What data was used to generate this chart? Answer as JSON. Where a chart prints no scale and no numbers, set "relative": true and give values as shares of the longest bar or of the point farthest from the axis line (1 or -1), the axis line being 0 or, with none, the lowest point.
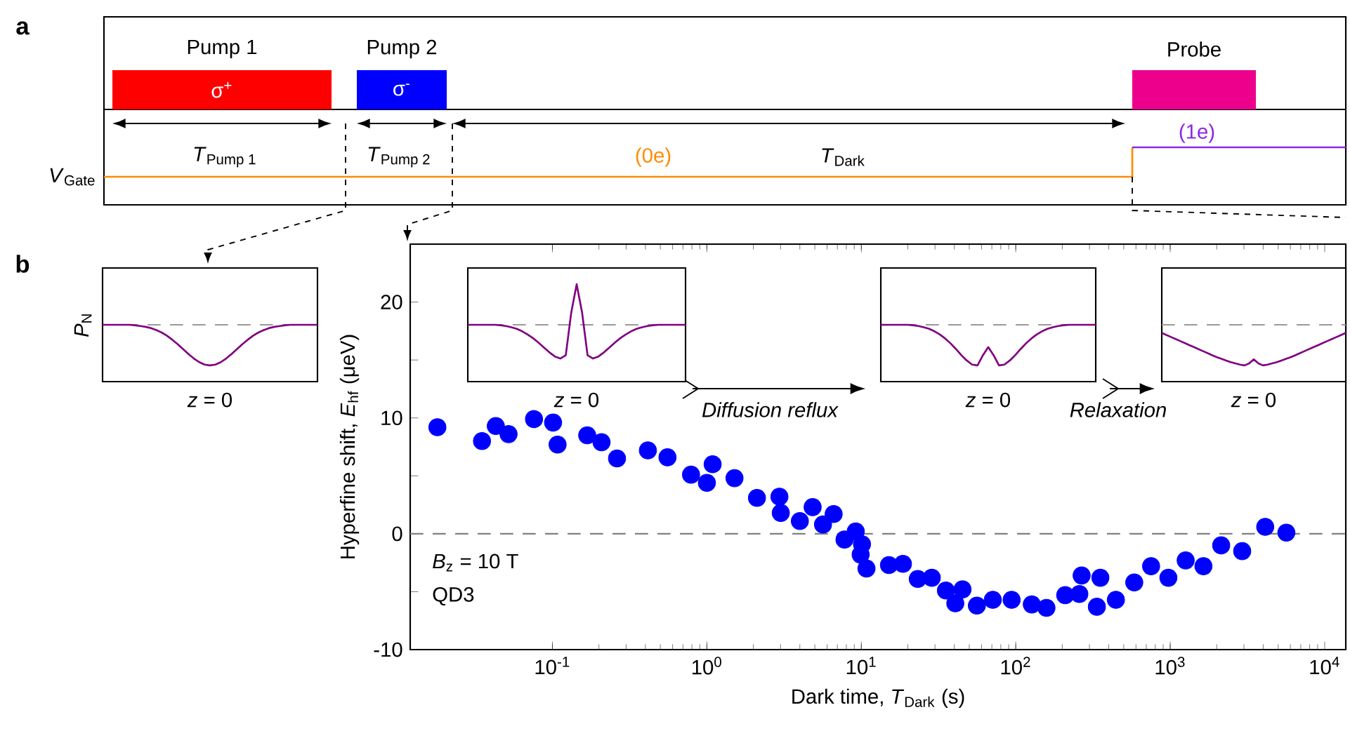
{
  "chart_data": [
    {
      "type": "line",
      "relative": true,
      "color": "#800080",
      "xlabel": "*z* = 0",
      "ylabel": "*P*$_{N}$",
      "categories": [
        null,
        null,
        null,
        null,
        null,
        null,
        null,
        null,
        null,
        null,
        null,
        null,
        null,
        null,
        null,
        null,
        null,
        null,
        null,
        null,
        null,
        null,
        null,
        null,
        null,
        null,
        null,
        null,
        null,
        null,
        null,
        null,
        null,
        null,
        null,
        null,
        null,
        null,
        null,
        null,
        null
      ],
      "values": [
        0,
        0,
        0,
        0,
        0,
        0,
        -0.01,
        -0.03,
        -0.05,
        -0.08,
        -0.13,
        -0.19,
        -0.27,
        -0.37,
        -0.48,
        -0.6,
        -0.72,
        -0.83,
        -0.92,
        -0.98,
        -1,
        -0.98,
        -0.92,
        -0.83,
        -0.72,
        -0.6,
        -0.48,
        -0.37,
        -0.27,
        -0.19,
        -0.13,
        -0.08,
        -0.05,
        -0.03,
        -0.01,
        0,
        0,
        0,
        0,
        0,
        0
      ],
      "ref_lines": [
        {
          "axis": "y",
          "value": 0,
          "color": "#999999",
          "line_style": "dashed"
        }
      ]
    },
    {
      "type": "scatter",
      "xlabel": "Dark time, *T*$_{Dark}$ (s)",
      "ylabel": "Hyperfine shift, *E*$_{hf}$ (μeV)",
      "x": [
        0.018,
        0.035,
        0.043,
        0.052,
        0.076,
        0.101,
        0.108,
        0.168,
        0.208,
        0.262,
        0.415,
        0.556,
        0.79,
        1.0,
        1.09,
        1.51,
        2.11,
        2.95,
        3.01,
        4.0,
        4.84,
        5.65,
        6.62,
        7.78,
        9.2,
        9.9,
        10.1,
        10.8,
        15.1,
        18.6,
        23.2,
        28.6,
        35.3,
        40.6,
        45.2,
        56,
        71,
        94,
        127,
        158,
        209,
        258,
        267,
        335,
        353,
        445,
        585,
        752,
        973,
        1259,
        1641,
        2138,
        2924,
        4121,
        5649
      ],
      "values": [
        9.2,
        8.0,
        9.3,
        8.6,
        9.9,
        9.6,
        7.7,
        8.5,
        7.9,
        6.5,
        7.2,
        6.6,
        5.1,
        4.4,
        6.0,
        4.8,
        3.1,
        3.2,
        1.8,
        1.1,
        2.3,
        0.8,
        1.7,
        -0.5,
        0.2,
        -1.8,
        -0.9,
        -3.0,
        -2.7,
        -2.6,
        -3.9,
        -3.8,
        -4.9,
        -6.0,
        -4.8,
        -6.2,
        -5.7,
        -5.7,
        -6.1,
        -6.4,
        -5.3,
        -5.2,
        -3.6,
        -6.3,
        -3.8,
        -5.7,
        -4.2,
        -2.8,
        -3.8,
        -2.3,
        -2.8,
        -1.0,
        -1.5,
        0.6,
        0.1
      ],
      "color": "#0000ff",
      "log": "x",
      "xlim": [
        0.012,
        13700
      ],
      "ylim": [
        -10,
        25
      ],
      "xticks": [
        {
          "value": 0.1,
          "label": "10$^{-1}$"
        },
        {
          "value": 1,
          "label": "10$^{0}$"
        },
        {
          "value": 10,
          "label": "10$^{1}$"
        },
        {
          "value": 100,
          "label": "10$^{2}$"
        },
        {
          "value": 1000,
          "label": "10$^{3}$"
        },
        {
          "value": 10000,
          "label": "10$^{4}$"
        }
      ],
      "yticks": [
        -10,
        {
          "value": -5,
          "label": null
        },
        0,
        {
          "value": 5,
          "label": null
        },
        10,
        {
          "value": 15,
          "label": null
        },
        20
      ],
      "ref_lines": [
        {
          "axis": "y",
          "value": 0,
          "color": "#808080",
          "line_style": "dashed"
        }
      ],
      "annotations": [
        "a",
        "b",
        "Pump 1",
        "Pump 2",
        "Probe",
        "σ$^{+}$",
        "σ$^{-}$",
        "*T*$_{Pump 1}$",
        "*T*$_{Pump 2}$",
        "*T*$_{Dark}$",
        "(0e)",
        "(1e)",
        "*V*$_{Gate}$",
        "Diffusion reflux",
        "Relaxation",
        "*B*$_{z}$ = 10 T",
        "QD3"
      ]
    },
    {
      "type": "line",
      "relative": true,
      "color": "#800080",
      "xlabel": "*z* = 0",
      "categories": [
        null,
        null,
        null,
        null,
        null,
        null,
        null,
        null,
        null,
        null,
        null,
        null,
        null,
        null,
        null,
        null,
        null,
        null,
        null,
        null,
        null,
        null,
        null,
        null,
        null,
        null,
        null,
        null,
        null,
        null,
        null,
        null,
        null,
        null,
        null,
        null,
        null,
        null,
        null,
        null,
        null
      ],
      "values": [
        0,
        0,
        0,
        0,
        0,
        0,
        -0.01,
        -0.03,
        -0.06,
        -0.1,
        -0.16,
        -0.24,
        -0.33,
        -0.44,
        -0.56,
        -0.68,
        -0.78,
        -0.83,
        -0.75,
        0.3,
        1,
        0.3,
        -0.75,
        -0.83,
        -0.78,
        -0.68,
        -0.56,
        -0.44,
        -0.33,
        -0.24,
        -0.16,
        -0.1,
        -0.06,
        -0.03,
        -0.01,
        0,
        0,
        0,
        0,
        0,
        0
      ],
      "ref_lines": [
        {
          "axis": "y",
          "value": 0,
          "color": "#999999",
          "line_style": "dashed"
        }
      ]
    },
    {
      "type": "line",
      "relative": true,
      "color": "#800080",
      "xlabel": "*z* = 0",
      "categories": [
        null,
        null,
        null,
        null,
        null,
        null,
        null,
        null,
        null,
        null,
        null,
        null,
        null,
        null,
        null,
        null,
        null,
        null,
        null,
        null,
        null,
        null,
        null,
        null,
        null,
        null,
        null,
        null,
        null,
        null,
        null,
        null,
        null,
        null,
        null,
        null,
        null,
        null,
        null,
        null,
        null
      ],
      "values": [
        0,
        0,
        0,
        0,
        0,
        0,
        -0.01,
        -0.03,
        -0.06,
        -0.1,
        -0.16,
        -0.24,
        -0.34,
        -0.46,
        -0.6,
        -0.75,
        -0.88,
        -0.98,
        -1,
        -0.75,
        -0.55,
        -0.75,
        -1,
        -0.98,
        -0.88,
        -0.75,
        -0.6,
        -0.46,
        -0.34,
        -0.24,
        -0.16,
        -0.1,
        -0.06,
        -0.03,
        -0.01,
        0,
        0,
        0,
        0,
        0,
        0
      ],
      "ref_lines": [
        {
          "axis": "y",
          "value": 0,
          "color": "#999999",
          "line_style": "dashed"
        }
      ]
    },
    {
      "type": "line",
      "relative": true,
      "color": "#800080",
      "xlabel": "*z* = 0",
      "categories": [
        null,
        null,
        null,
        null,
        null,
        null,
        null,
        null,
        null,
        null,
        null,
        null,
        null,
        null,
        null,
        null,
        null,
        null,
        null,
        null,
        null,
        null,
        null,
        null,
        null,
        null,
        null,
        null,
        null,
        null,
        null,
        null,
        null,
        null,
        null,
        null,
        null,
        null,
        null,
        null,
        null
      ],
      "values": [
        -0.2,
        -0.25,
        -0.3,
        -0.35,
        -0.4,
        -0.45,
        -0.5,
        -0.55,
        -0.6,
        -0.65,
        -0.7,
        -0.75,
        -0.8,
        -0.84,
        -0.88,
        -0.92,
        -0.95,
        -0.98,
        -1,
        -0.95,
        -0.85,
        -0.95,
        -1,
        -0.98,
        -0.95,
        -0.92,
        -0.88,
        -0.84,
        -0.8,
        -0.75,
        -0.7,
        -0.65,
        -0.6,
        -0.55,
        -0.5,
        -0.45,
        -0.4,
        -0.35,
        -0.3,
        -0.25,
        -0.2
      ],
      "ref_lines": [
        {
          "axis": "y",
          "value": 0,
          "color": "#999999",
          "line_style": "dashed"
        }
      ]
    }
  ]
}
